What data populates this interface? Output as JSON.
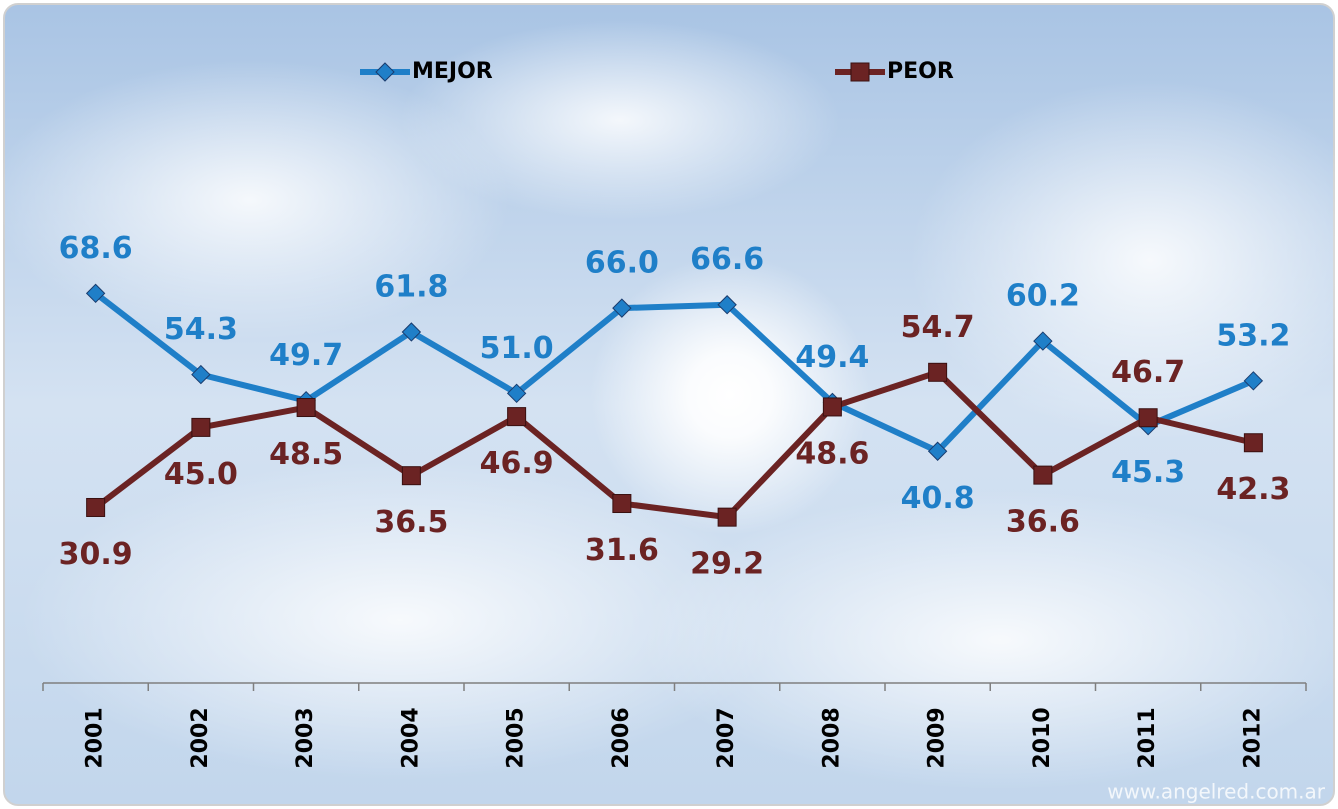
{
  "chart_data": {
    "type": "line",
    "categories": [
      "2001",
      "2002",
      "2003",
      "2004",
      "2005",
      "2006",
      "2007",
      "2008",
      "2009",
      "2010",
      "2011",
      "2012"
    ],
    "series": [
      {
        "name": "MEJOR",
        "color": "#1f7fc8",
        "marker": "diamond",
        "values": [
          68.6,
          54.3,
          49.7,
          61.8,
          51.0,
          66.0,
          66.6,
          49.4,
          40.8,
          60.2,
          45.3,
          53.2
        ],
        "value_labels": [
          "68.6",
          "54.3",
          "49.7",
          "61.8",
          "51.0",
          "66.0",
          "66.6",
          "49.4",
          "40.8",
          "60.2",
          "45.3",
          "53.2"
        ]
      },
      {
        "name": "PEOR",
        "color": "#6b2323",
        "marker": "square",
        "values": [
          30.9,
          45.0,
          48.5,
          36.5,
          46.9,
          31.6,
          29.2,
          48.6,
          54.7,
          36.6,
          46.7,
          42.3
        ],
        "value_labels": [
          "30.9",
          "45.0",
          "48.5",
          "36.5",
          "46.9",
          "31.6",
          "29.2",
          "48.6",
          "54.7",
          "36.6",
          "46.7",
          "42.3"
        ]
      }
    ],
    "ylim": [
      0,
      100
    ],
    "legend": "top",
    "watermark": "www.angelred.com.ar"
  }
}
